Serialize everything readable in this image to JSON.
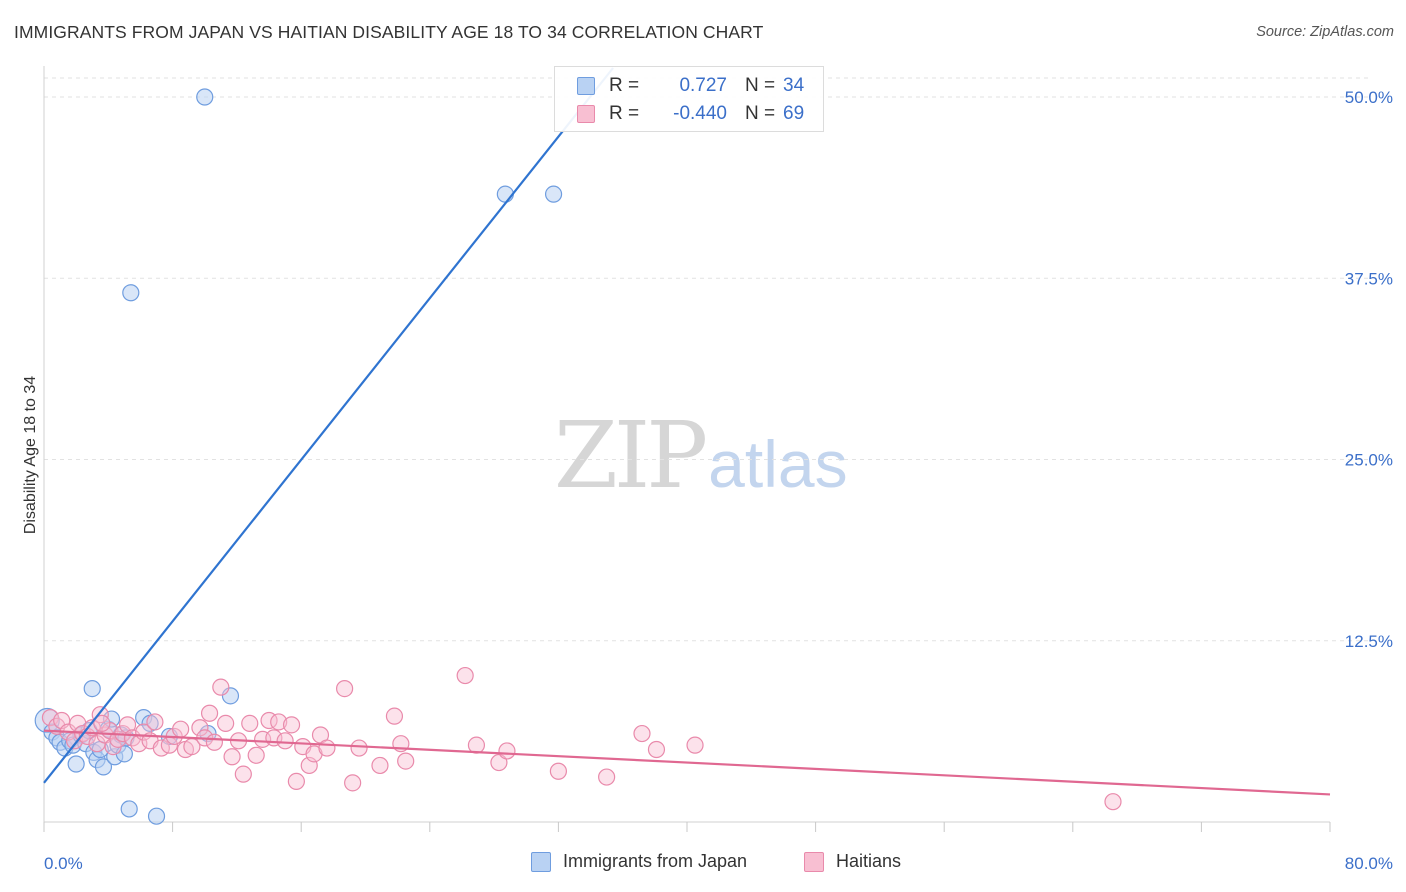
{
  "header": {
    "title": "IMMIGRANTS FROM JAPAN VS HAITIAN DISABILITY AGE 18 TO 34 CORRELATION CHART",
    "source": "Source: ZipAtlas.com"
  },
  "watermark": {
    "zip": "ZIP",
    "atlas": "atlas"
  },
  "legend": {
    "rows": [
      {
        "r_label": "R =",
        "r_value": "0.727",
        "n_label": "N =",
        "n_value": "34"
      },
      {
        "r_label": "R =",
        "r_value": "-0.440",
        "n_label": "N =",
        "n_value": "69"
      }
    ]
  },
  "colors": {
    "japan_fill": "#b9d2f3",
    "japan_stroke": "#6f9ddf",
    "japan_line": "#2f74d0",
    "haiti_fill": "#f8bfd2",
    "haiti_stroke": "#e98aab",
    "haiti_line": "#e06891",
    "grid": "#e2e2e2",
    "tick_label": "#3b6fc9"
  },
  "chart_data": {
    "type": "scatter",
    "title": "IMMIGRANTS FROM JAPAN VS HAITIAN DISABILITY AGE 18 TO 34 CORRELATION CHART",
    "xlabel": "",
    "ylabel": "Disability Age 18 to 34",
    "xlim": [
      0,
      80
    ],
    "ylim": [
      0,
      52
    ],
    "x_tick_labels": [
      "0.0%",
      "80.0%"
    ],
    "y_ticks": [
      12.5,
      25.0,
      37.5,
      50.0
    ],
    "y_tick_labels": [
      "12.5%",
      "25.0%",
      "37.5%",
      "50.0%"
    ],
    "grid": true,
    "legend_position": "bottom",
    "series": [
      {
        "name": "Immigrants from Japan",
        "r": 0.727,
        "n": 34,
        "trend": {
          "x": [
            0,
            35.4
          ],
          "y": [
            2.7,
            52
          ]
        },
        "points": [
          [
            0.2,
            7.0
          ],
          [
            0.5,
            6.2
          ],
          [
            0.8,
            5.8
          ],
          [
            1.0,
            5.5
          ],
          [
            1.3,
            5.1
          ],
          [
            1.6,
            5.6
          ],
          [
            1.8,
            5.3
          ],
          [
            2.0,
            4.0
          ],
          [
            2.3,
            6.0
          ],
          [
            2.6,
            5.4
          ],
          [
            2.8,
            6.3
          ],
          [
            3.0,
            9.2
          ],
          [
            3.1,
            4.8
          ],
          [
            3.3,
            4.3
          ],
          [
            3.5,
            5.0
          ],
          [
            3.7,
            3.8
          ],
          [
            4.0,
            6.4
          ],
          [
            4.2,
            7.1
          ],
          [
            4.4,
            4.5
          ],
          [
            4.6,
            5.3
          ],
          [
            4.8,
            6.0
          ],
          [
            5.0,
            4.7
          ],
          [
            5.1,
            5.8
          ],
          [
            5.3,
            0.9
          ],
          [
            6.2,
            7.2
          ],
          [
            6.6,
            6.8
          ],
          [
            7.0,
            0.4
          ],
          [
            7.8,
            5.9
          ],
          [
            10.0,
            50.0
          ],
          [
            10.2,
            6.1
          ],
          [
            11.6,
            8.7
          ],
          [
            5.4,
            36.5
          ],
          [
            28.7,
            43.3
          ],
          [
            31.7,
            43.3
          ]
        ]
      },
      {
        "name": "Haitians",
        "r": -0.44,
        "n": 69,
        "trend": {
          "x": [
            0,
            80
          ],
          "y": [
            6.3,
            1.9
          ]
        },
        "points": [
          [
            0.4,
            7.2
          ],
          [
            0.8,
            6.6
          ],
          [
            1.1,
            7.0
          ],
          [
            1.5,
            6.2
          ],
          [
            1.9,
            5.6
          ],
          [
            2.1,
            6.8
          ],
          [
            2.4,
            6.1
          ],
          [
            2.7,
            5.9
          ],
          [
            3.0,
            6.5
          ],
          [
            3.3,
            5.4
          ],
          [
            3.5,
            7.4
          ],
          [
            3.8,
            6.0
          ],
          [
            4.1,
            6.3
          ],
          [
            4.3,
            5.2
          ],
          [
            4.6,
            5.7
          ],
          [
            4.9,
            6.1
          ],
          [
            5.2,
            6.7
          ],
          [
            5.5,
            5.8
          ],
          [
            5.9,
            5.4
          ],
          [
            6.2,
            6.2
          ],
          [
            6.6,
            5.6
          ],
          [
            6.9,
            6.9
          ],
          [
            7.3,
            5.1
          ],
          [
            7.8,
            5.3
          ],
          [
            8.1,
            5.9
          ],
          [
            8.5,
            6.4
          ],
          [
            8.8,
            5.0
          ],
          [
            9.2,
            5.2
          ],
          [
            9.7,
            6.5
          ],
          [
            10.0,
            5.8
          ],
          [
            10.3,
            7.5
          ],
          [
            10.6,
            5.5
          ],
          [
            11.0,
            9.3
          ],
          [
            11.3,
            6.8
          ],
          [
            11.7,
            4.5
          ],
          [
            12.1,
            5.6
          ],
          [
            12.4,
            3.3
          ],
          [
            12.8,
            6.8
          ],
          [
            13.2,
            4.6
          ],
          [
            13.6,
            5.7
          ],
          [
            14.0,
            7.0
          ],
          [
            14.3,
            5.8
          ],
          [
            14.6,
            6.9
          ],
          [
            15.0,
            5.6
          ],
          [
            15.4,
            6.7
          ],
          [
            15.7,
            2.8
          ],
          [
            16.1,
            5.2
          ],
          [
            16.5,
            3.9
          ],
          [
            16.8,
            4.7
          ],
          [
            17.2,
            6.0
          ],
          [
            17.6,
            5.1
          ],
          [
            18.7,
            9.2
          ],
          [
            19.2,
            2.7
          ],
          [
            19.6,
            5.1
          ],
          [
            20.9,
            3.9
          ],
          [
            21.8,
            7.3
          ],
          [
            22.2,
            5.4
          ],
          [
            22.5,
            4.2
          ],
          [
            26.2,
            10.1
          ],
          [
            26.9,
            5.3
          ],
          [
            28.3,
            4.1
          ],
          [
            28.8,
            4.9
          ],
          [
            32.0,
            3.5
          ],
          [
            35.0,
            3.1
          ],
          [
            37.2,
            6.1
          ],
          [
            38.1,
            5.0
          ],
          [
            40.5,
            5.3
          ],
          [
            66.5,
            1.4
          ],
          [
            3.6,
            6.8
          ]
        ]
      }
    ]
  }
}
